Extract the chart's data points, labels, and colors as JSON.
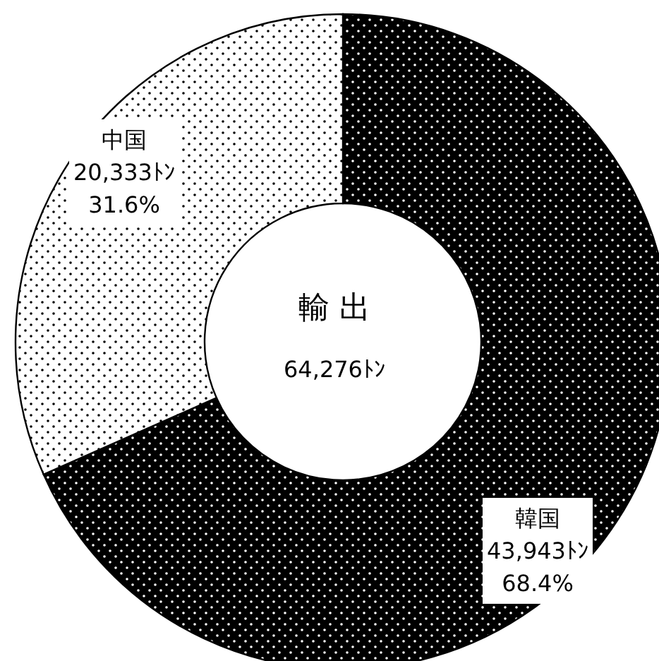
{
  "chart_data": {
    "type": "donut",
    "title": "輸 出",
    "annotations": [
      "64,276ﾄﾝ"
    ],
    "categories": [
      "韓国",
      "中国"
    ],
    "values": [
      43943,
      20333
    ],
    "colors": [
      "#000000",
      "#ffffff"
    ],
    "value_labels": [
      "43,943ﾄﾝ\n68.4%",
      "20,333ﾄﾝ\n31.6%"
    ]
  }
}
